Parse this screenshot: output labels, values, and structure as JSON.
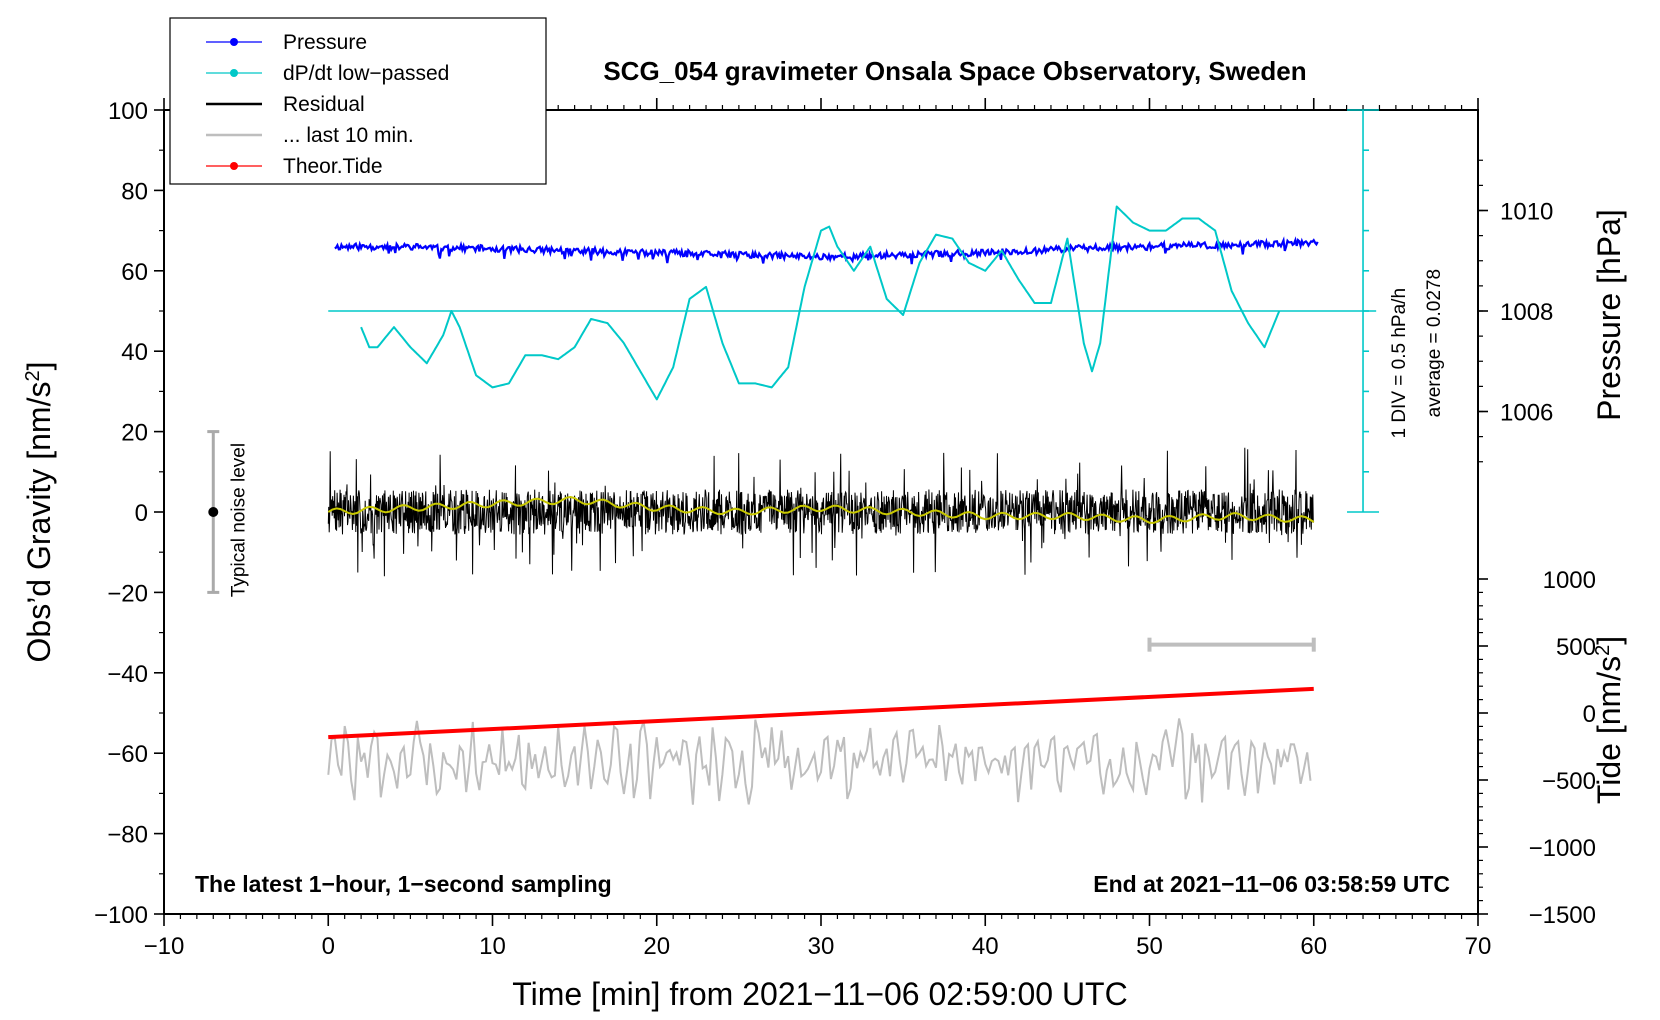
{
  "chart_data": {
    "type": "line",
    "title": "SCG_054 gravimeter Onsala Space Observatory, Sweden",
    "xlabel": "Time [min] from 2021−11−06 02:59:00 UTC",
    "ylabel": "Obs’d Gravity [nm/s²]",
    "ylabel_main": "Obs’d Gravity [nm/s",
    "ylabel_sup": "2",
    "ylabel_end": "]",
    "y2label": "Pressure [hPa]",
    "y3label": "Tide [nm/s²]",
    "y3label_main": "Tide [nm/s",
    "y3label_sup": "2",
    "y3label_end": "]",
    "xlim": [
      -10,
      70
    ],
    "ylim": [
      -100,
      100
    ],
    "x_ticks": [
      -10,
      0,
      10,
      20,
      30,
      40,
      50,
      60,
      70
    ],
    "x_tick_labels": [
      "−10",
      "0",
      "10",
      "20",
      "30",
      "40",
      "50",
      "60",
      "70"
    ],
    "y_ticks": [
      -100,
      -80,
      -60,
      -40,
      -20,
      0,
      20,
      40,
      60,
      80,
      100
    ],
    "y_tick_labels": [
      "−100",
      "−80",
      "−60",
      "−40",
      "−20",
      "0",
      "20",
      "40",
      "60",
      "80",
      "100"
    ],
    "pressure_axis": {
      "ticks": [
        1006,
        1008,
        1010
      ],
      "tick_labels": [
        "1006",
        "1008",
        "1010"
      ],
      "gravity_at_1006": 25,
      "gravity_per_hpa": 12.5
    },
    "tide_axis": {
      "ticks": [
        -1500,
        -1000,
        -500,
        0,
        500,
        1000
      ],
      "tick_labels": [
        "−1500",
        "−1000",
        "−500",
        "0",
        "500",
        "1000"
      ],
      "gravity_at_0": -50,
      "gravity_per_unit": 0.0333333
    },
    "dpdt_scale": {
      "label_div": "1 DIV = 0.5 hPa/h",
      "label_avg": "average = 0.0278",
      "x": 63,
      "y_range": [
        0,
        100
      ],
      "div_y": 10,
      "reference_y": 50
    },
    "noise_bar": {
      "label": "Typical noise level",
      "x": -7,
      "y_range": [
        -20,
        20
      ],
      "center": 0
    },
    "last10_bar": {
      "x_range": [
        50,
        60
      ],
      "y": -33
    },
    "footnote_left": "The latest 1−hour, 1−second sampling",
    "footnote_right": "End at 2021−11−06 03:58:59 UTC",
    "legend": [
      {
        "label": "Pressure",
        "color": "#0000ff",
        "marker": true
      },
      {
        "label": "dP/dt low−passed",
        "color": "#00c8c8",
        "marker": true
      },
      {
        "label": "Residual",
        "color": "#000000",
        "marker": false
      },
      {
        "label": "... last 10 min.",
        "color": "#bebebe",
        "marker": false
      },
      {
        "label": "Theor.Tide",
        "color": "#ff0000",
        "marker": true
      }
    ],
    "series": [
      {
        "name": "Pressure",
        "color": "#0000ff",
        "x": [
          0.5,
          5,
          10,
          15,
          20,
          25,
          30,
          35,
          40,
          45,
          50,
          55,
          60
        ],
        "y": [
          66,
          66,
          65.5,
          65,
          64.5,
          64,
          63.5,
          64,
          64.5,
          65.5,
          66,
          66.5,
          67
        ]
      },
      {
        "name": "dP/dt low−passed",
        "color": "#00c8c8",
        "x": [
          2,
          2.5,
          3,
          4,
          5,
          6,
          7,
          7.5,
          8,
          9,
          10,
          11,
          12,
          13,
          14,
          15,
          16,
          17,
          18,
          19,
          20,
          21,
          22,
          23,
          24,
          25,
          26,
          27,
          28,
          29,
          30,
          30.5,
          31,
          32,
          33,
          34,
          35,
          36,
          37,
          38,
          39,
          40,
          41,
          42,
          43,
          44,
          45,
          46,
          46.5,
          47,
          48,
          49,
          50,
          51,
          52,
          53,
          54,
          55,
          56,
          57,
          58
        ],
        "y": [
          46,
          41,
          41,
          46,
          41,
          37,
          44,
          50,
          46,
          34,
          31,
          32,
          39,
          39,
          38,
          41,
          48,
          47,
          42,
          35,
          28,
          36,
          53,
          56,
          42,
          32,
          32,
          31,
          36,
          56,
          70,
          71,
          66,
          60,
          66,
          53,
          49,
          62,
          69,
          68,
          62,
          60,
          65,
          58,
          52,
          52,
          68,
          42,
          35,
          42,
          76,
          72,
          70,
          70,
          73,
          73,
          70,
          55,
          47,
          41,
          51
        ]
      },
      {
        "name": "Residual",
        "color": "#000000",
        "x": [
          0,
          60
        ],
        "y": [
          0,
          0
        ],
        "band": 8,
        "spike": 16,
        "seed": 7
      },
      {
        "name": "Residual smoothed",
        "color": "#c8c800",
        "x": [
          0,
          5,
          10,
          15,
          20,
          25,
          30,
          35,
          40,
          45,
          50,
          55,
          60
        ],
        "y": [
          0,
          1,
          2,
          3,
          1,
          0,
          1,
          0,
          -1,
          -1,
          -2,
          -1,
          -2
        ]
      },
      {
        "name": "... last 10 min.",
        "color": "#bebebe",
        "x_range": [
          0,
          60
        ],
        "center": -62,
        "amplitude": 8,
        "seed": 3
      },
      {
        "name": "Theor.Tide",
        "color": "#ff0000",
        "x": [
          0,
          60
        ],
        "y": [
          -56,
          -44
        ]
      }
    ]
  }
}
